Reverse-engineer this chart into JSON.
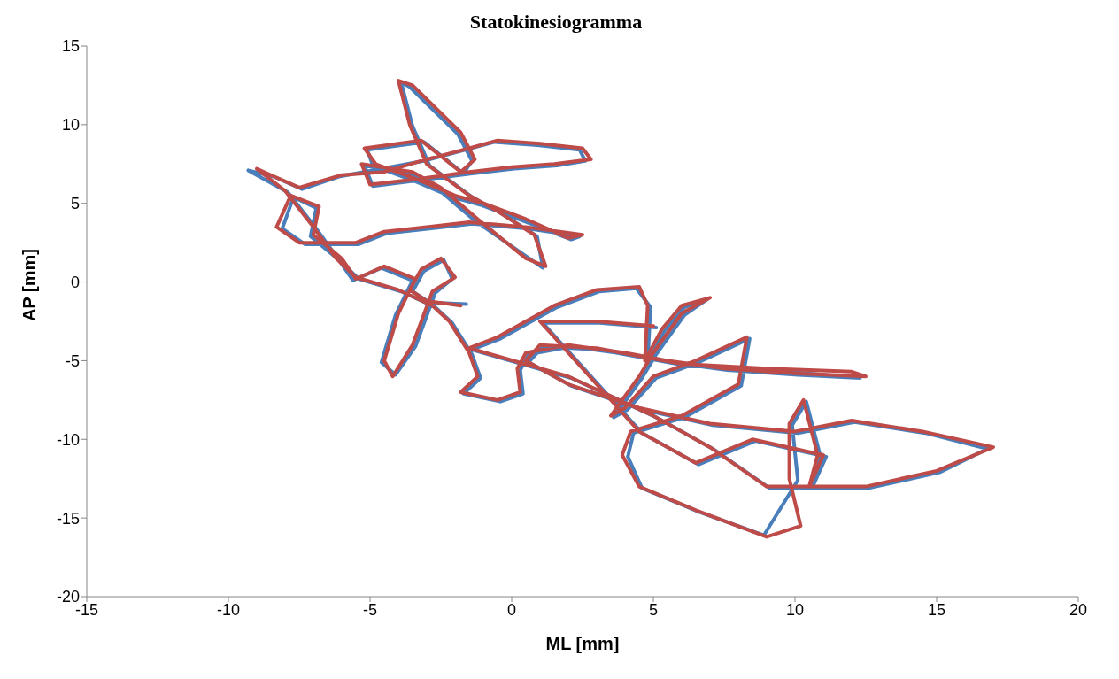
{
  "chart_data": {
    "type": "line",
    "title": "Statokinesiogramma",
    "xlabel": "ML [mm]",
    "ylabel": "AP [mm]",
    "xlim": [
      -15,
      20
    ],
    "ylim": [
      -20,
      15
    ],
    "xticks": [
      -15,
      -10,
      -5,
      0,
      5,
      10,
      15,
      20
    ],
    "yticks": [
      -20,
      -15,
      -10,
      -5,
      0,
      5,
      10,
      15
    ],
    "legend": false,
    "marker": "none",
    "line_style": "solid",
    "series": [
      {
        "color": "#4a7ebb",
        "x": [
          -1.6,
          -2.9,
          -3.5,
          -3.1,
          -2.4,
          -2.1,
          -2.7,
          -3.4,
          -4.1,
          -4.6,
          -4.1,
          -3.5,
          -4.6,
          -5.6,
          -6.1,
          -7.1,
          -6.9,
          -7.7,
          -8.1,
          -7.3,
          -5.4,
          -4.4,
          -2.9,
          -1.4,
          0.6,
          2.4,
          2.1,
          0.4,
          -1.1,
          -2.1,
          -3.4,
          -4.9,
          -5.1,
          -3.1,
          -1.7,
          -1.4,
          -1.9,
          -3.6,
          -3.9,
          -3.5,
          -2.9,
          -1.4,
          -0.4,
          0.9,
          1.1,
          -1.3,
          -2.6,
          -3.6,
          -5.2,
          -4.9,
          -1.4,
          0.1,
          1.6,
          2.6,
          2.4,
          0.9,
          -0.6,
          -3.1,
          -6.1,
          -7.4,
          -8.4,
          -9.3,
          -7.9,
          -6.9,
          -6.1,
          -5.4,
          -3.9,
          -2.7,
          -2.1,
          -1.4,
          -1.1,
          -1.7,
          -0.4,
          0.4,
          0.3,
          0.6,
          2.1,
          4.1,
          5.6,
          7.6,
          10.1,
          12.3,
          9.1,
          6.1,
          3.1,
          1.1,
          0.6,
          2.1,
          4.6,
          7.1,
          10.1,
          12.1,
          14.6,
          16.8,
          15.1,
          12.6,
          10.6,
          10.9,
          10.4,
          9.9,
          10.1,
          8.9,
          6.6,
          4.6,
          4.1,
          4.3,
          6.1,
          8.1,
          8.4,
          6.6,
          5.1,
          4.1,
          3.6,
          4.6,
          5.1,
          6.1,
          6.9,
          6.1,
          5.4,
          4.8,
          4.9,
          4.4,
          3.1,
          1.6,
          -0.4,
          -1.4,
          2.1,
          5.1,
          7.1,
          9.1,
          10.6,
          11.1,
          8.6,
          6.6,
          4.6,
          1.1,
          3.1,
          5.1
        ],
        "values": [
          -1.4,
          -1.3,
          -0.6,
          0.7,
          1.4,
          0.2,
          -0.7,
          -4.1,
          -5.9,
          -5.1,
          -2.1,
          0.1,
          0.9,
          0.1,
          1.4,
          2.9,
          4.7,
          5.4,
          3.4,
          2.4,
          2.4,
          3.1,
          3.4,
          3.7,
          3.4,
          2.9,
          2.7,
          3.9,
          4.9,
          5.4,
          6.4,
          7.4,
          8.4,
          8.9,
          6.9,
          7.7,
          9.4,
          12.4,
          12.7,
          9.9,
          7.4,
          5.4,
          4.4,
          2.9,
          0.9,
          3.9,
          5.9,
          6.9,
          7.4,
          6.1,
          6.9,
          7.2,
          7.4,
          7.7,
          8.4,
          8.7,
          8.9,
          7.7,
          6.7,
          5.9,
          6.7,
          7.1,
          5.7,
          3.4,
          1.4,
          0.2,
          -0.6,
          -1.6,
          -2.6,
          -4.6,
          -6.1,
          -7.1,
          -7.6,
          -7.1,
          -5.6,
          -4.6,
          -4.1,
          -4.6,
          -5.1,
          -5.6,
          -5.9,
          -6.1,
          -5.6,
          -5.3,
          -4.3,
          -4.1,
          -5.1,
          -6.6,
          -8.1,
          -9.1,
          -9.6,
          -8.9,
          -9.6,
          -10.6,
          -12.1,
          -13.1,
          -13.1,
          -11.1,
          -7.6,
          -9.1,
          -12.6,
          -16.1,
          -14.6,
          -13.1,
          -11.1,
          -9.6,
          -8.6,
          -6.6,
          -3.6,
          -5.1,
          -6.1,
          -8.1,
          -8.6,
          -6.1,
          -4.6,
          -2.1,
          -1.1,
          -1.6,
          -3.1,
          -5.1,
          -1.6,
          -0.4,
          -0.6,
          -1.6,
          -3.6,
          -4.3,
          -6.1,
          -8.6,
          -10.6,
          -13.1,
          -13.1,
          -11.1,
          -10.1,
          -11.6,
          -9.6,
          -2.6,
          -2.6,
          -2.9
        ]
      },
      {
        "color": "#be4b48",
        "x": [
          -1.8,
          -3,
          -3.6,
          -3.2,
          -2.5,
          -2,
          -2.8,
          -3.5,
          -4.2,
          -4.5,
          -4,
          -3.4,
          -4.5,
          -5.5,
          -6,
          -7,
          -6.8,
          -7.8,
          -8.3,
          -7.5,
          -5.5,
          -4.5,
          -3,
          -1.5,
          0.5,
          2.5,
          2,
          0.5,
          -1,
          -2,
          -3.3,
          -4.8,
          -5.2,
          -3.2,
          -1.8,
          -1.3,
          -1.8,
          -3.5,
          -4,
          -3.6,
          -3,
          -1.5,
          -0.5,
          0.8,
          1.2,
          0.5,
          -1.2,
          -2.5,
          -3.5,
          -5.3,
          -5,
          -3.5,
          -1.5,
          0,
          1.5,
          2.8,
          2.5,
          1,
          -0.5,
          -1.5,
          -3,
          -4.5,
          -6,
          -7.5,
          -8.5,
          -9,
          -8,
          -7,
          -6.2,
          -5.5,
          -4,
          -2.8,
          -2.2,
          -1.5,
          -1.2,
          -1.8,
          -0.5,
          0.3,
          0.2,
          0.5,
          2,
          4,
          5.5,
          7.5,
          10,
          12.5,
          12,
          9,
          6,
          3,
          1,
          0.5,
          2,
          4.5,
          7,
          10,
          12,
          14.5,
          17,
          15,
          12.5,
          10.5,
          10.8,
          10.3,
          9.8,
          9.8,
          10.2,
          9,
          6.5,
          4.5,
          3.9,
          4.2,
          6,
          8,
          8.3,
          6.5,
          5,
          4,
          3.5,
          4.5,
          5,
          6,
          7,
          6,
          5.3,
          4.7,
          4.8,
          4.5,
          3,
          1.5,
          -0.5,
          -1.5,
          2,
          5,
          7,
          9,
          10.5,
          11,
          8.5,
          6.5,
          4.5,
          1,
          3,
          5
        ],
        "values": [
          -1.5,
          -1.2,
          -0.5,
          0.8,
          1.5,
          0.3,
          -0.6,
          -4,
          -6,
          -5,
          -2,
          0.2,
          1,
          0.2,
          1.5,
          3,
          4.8,
          5.5,
          3.5,
          2.5,
          2.5,
          3.2,
          3.5,
          3.8,
          3.5,
          3,
          2.8,
          4,
          5,
          5.5,
          6.5,
          7.5,
          8.5,
          9,
          7,
          7.8,
          9.5,
          12.5,
          12.8,
          10,
          7.5,
          5.5,
          4.5,
          3,
          1,
          1.5,
          4,
          6,
          7,
          7.5,
          6.2,
          6.5,
          7,
          7.3,
          7.5,
          7.8,
          8.5,
          8.8,
          9,
          8.5,
          7.8,
          7,
          6.8,
          6,
          6.8,
          7.2,
          5.8,
          3.5,
          1.5,
          0.3,
          -0.5,
          -1.5,
          -2.5,
          -4.5,
          -6,
          -7,
          -7.5,
          -7,
          -5.5,
          -4.5,
          -4,
          -4.5,
          -5,
          -5.5,
          -5.8,
          -6,
          -5.7,
          -5.5,
          -5.2,
          -4.2,
          -4,
          -5,
          -6.5,
          -8,
          -9,
          -9.5,
          -8.8,
          -9.5,
          -10.5,
          -12,
          -13,
          -13,
          -11,
          -7.5,
          -9,
          -12.5,
          -15.5,
          -16.2,
          -14.5,
          -13,
          -11,
          -9.5,
          -8.5,
          -6.5,
          -3.5,
          -5,
          -6,
          -8,
          -8.5,
          -6,
          -4.5,
          -2,
          -1,
          -1.5,
          -3,
          -5,
          -1.5,
          -0.3,
          -0.5,
          -1.5,
          -3.5,
          -4.2,
          -6,
          -8.5,
          -10.5,
          -13,
          -13,
          -11,
          -10,
          -11.5,
          -9.5,
          -2.5,
          -2.5,
          -2.8
        ]
      }
    ]
  }
}
